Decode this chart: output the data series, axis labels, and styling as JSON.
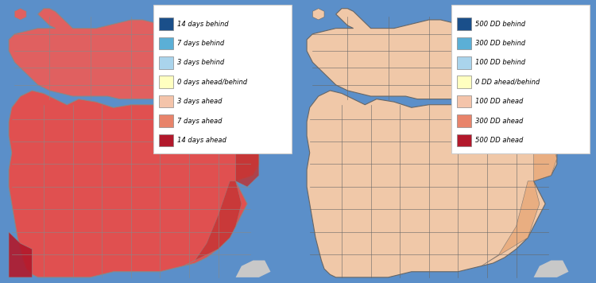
{
  "fig_width": 7.5,
  "fig_height": 3.56,
  "dpi": 100,
  "background_color": "#5b8fc9",
  "left_panel": {
    "legend_items": [
      {
        "label": "14 days behind",
        "color": "#1a4f8a"
      },
      {
        "label": "7 days behind",
        "color": "#5bafd6"
      },
      {
        "label": "3 days behind",
        "color": "#aad4ec"
      },
      {
        "label": "0 days ahead/behind",
        "color": "#ffffc0"
      },
      {
        "label": "3 days ahead",
        "color": "#f4c4aa"
      },
      {
        "label": "7 days ahead",
        "color": "#e8836a"
      },
      {
        "label": "14 days ahead",
        "color": "#b2182b"
      }
    ],
    "lp_dominant_color": "#e05050",
    "lp_dark_color": "#c0202a",
    "up_color": "#e06060",
    "thumb_color": "#c0202a",
    "county_border_color": "#888888",
    "water_color": "#5b8fc9"
  },
  "right_panel": {
    "legend_items": [
      {
        "label": "500 DD behind",
        "color": "#1a4f8a"
      },
      {
        "label": "300 DD behind",
        "color": "#5bafd6"
      },
      {
        "label": "100 DD behind",
        "color": "#aad4ec"
      },
      {
        "label": "0 DD ahead/behind",
        "color": "#ffffc0"
      },
      {
        "label": "100 DD ahead",
        "color": "#f4c4aa"
      },
      {
        "label": "300 DD ahead",
        "color": "#e8836a"
      },
      {
        "label": "500 DD ahead",
        "color": "#b2182b"
      }
    ],
    "lp_dominant_color": "#f0c8a8",
    "lp_se_color": "#e8a878",
    "up_color": "#f0c8a8",
    "thumb_color": "#e8a878",
    "county_border_color": "#666666",
    "water_color": "#5b8fc9"
  }
}
